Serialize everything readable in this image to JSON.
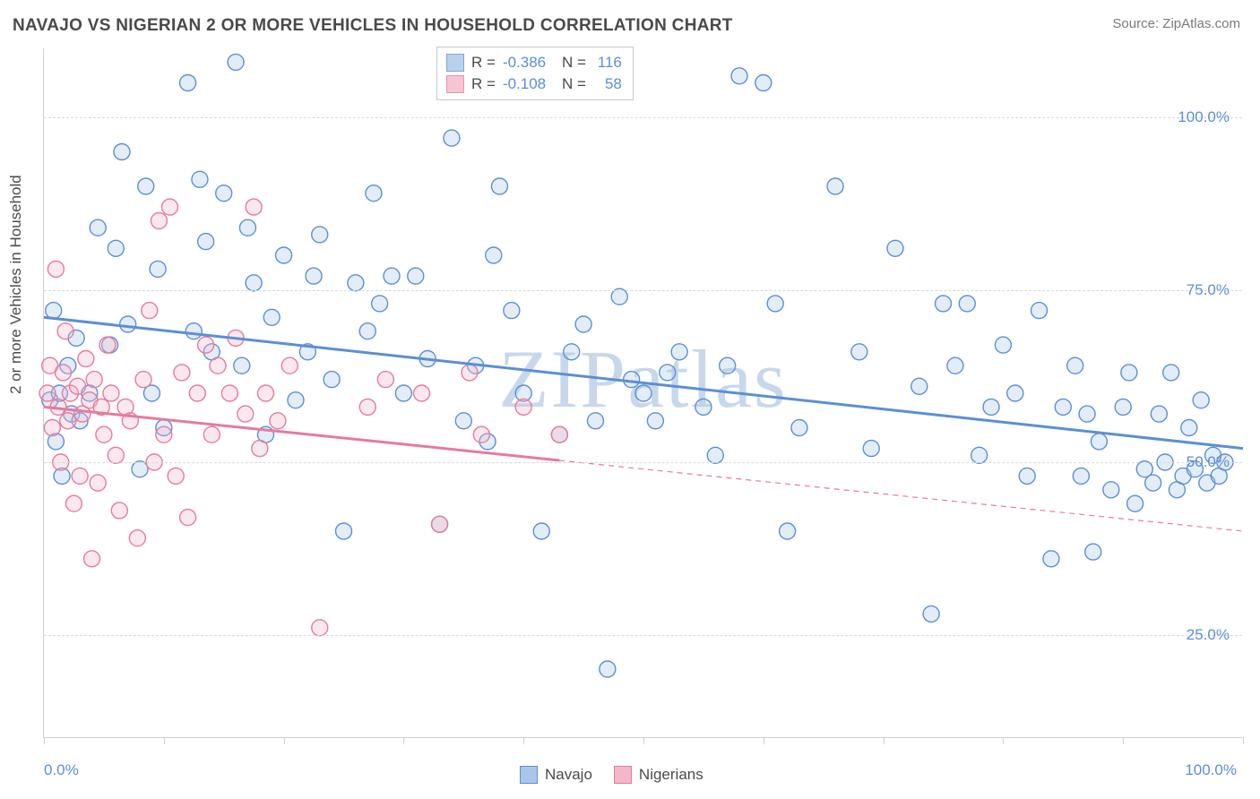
{
  "header": {
    "title": "NAVAJO VS NIGERIAN 2 OR MORE VEHICLES IN HOUSEHOLD CORRELATION CHART",
    "source_prefix": "Source: ",
    "source_name": "ZipAtlas.com"
  },
  "chart": {
    "type": "scatter",
    "ylabel": "2 or more Vehicles in Household",
    "watermark_text": "ZIPatlas",
    "watermark_color": "#c7d8ec",
    "background_color": "#ffffff",
    "grid_color": "#d8d8d8",
    "axis_color": "#cfcfcf",
    "ymin": 10,
    "ymax": 110,
    "xmin": 0,
    "xmax": 100,
    "yticks": [
      {
        "v": 25,
        "label": "25.0%"
      },
      {
        "v": 50,
        "label": "50.0%"
      },
      {
        "v": 75,
        "label": "75.0%"
      },
      {
        "v": 100,
        "label": "100.0%"
      }
    ],
    "ytick_color": "#5b8fd6",
    "xticks": [
      0,
      10,
      20,
      30,
      40,
      50,
      60,
      70,
      80,
      90,
      100
    ],
    "xtick_label_left": "0.0%",
    "xtick_label_right": "100.0%",
    "xtick_label_color": "#5b8fd6",
    "marker_radius": 9,
    "marker_stroke_width": 1.4,
    "marker_fill_opacity": 0.32,
    "regression_line_width": 3,
    "series": [
      {
        "name": "Navajo",
        "color": "#5b8fd6",
        "fill": "#a9c6ea",
        "stroke": "#5b8fd6",
        "R": "-0.386",
        "N": "116",
        "line": {
          "x1": 0,
          "y1": 71,
          "x2": 100,
          "y2": 52,
          "dash": "none"
        },
        "points": [
          [
            0.5,
            59
          ],
          [
            0.8,
            72
          ],
          [
            1.0,
            53
          ],
          [
            1.3,
            60
          ],
          [
            1.5,
            48
          ],
          [
            2.0,
            64
          ],
          [
            2.3,
            57
          ],
          [
            2.7,
            68
          ],
          [
            3.0,
            56
          ],
          [
            3.8,
            60
          ],
          [
            4.5,
            84
          ],
          [
            5.5,
            67
          ],
          [
            6.0,
            81
          ],
          [
            6.5,
            95
          ],
          [
            7.0,
            70
          ],
          [
            8.0,
            49
          ],
          [
            8.5,
            90
          ],
          [
            9.0,
            60
          ],
          [
            9.5,
            78
          ],
          [
            10.0,
            55
          ],
          [
            12.0,
            105
          ],
          [
            12.5,
            69
          ],
          [
            13.0,
            91
          ],
          [
            13.5,
            82
          ],
          [
            14.0,
            66
          ],
          [
            15.0,
            89
          ],
          [
            16.0,
            108
          ],
          [
            16.5,
            64
          ],
          [
            17.0,
            84
          ],
          [
            17.5,
            76
          ],
          [
            18.5,
            54
          ],
          [
            19.0,
            71
          ],
          [
            20.0,
            80
          ],
          [
            21.0,
            59
          ],
          [
            22.0,
            66
          ],
          [
            22.5,
            77
          ],
          [
            23.0,
            83
          ],
          [
            24.0,
            62
          ],
          [
            25.0,
            40
          ],
          [
            26.0,
            76
          ],
          [
            27.0,
            69
          ],
          [
            27.5,
            89
          ],
          [
            28.0,
            73
          ],
          [
            29.0,
            77
          ],
          [
            30.0,
            60
          ],
          [
            31.0,
            77
          ],
          [
            32.0,
            65
          ],
          [
            33.0,
            41
          ],
          [
            34.0,
            97
          ],
          [
            35.0,
            56
          ],
          [
            36.0,
            64
          ],
          [
            37.0,
            53
          ],
          [
            37.5,
            80
          ],
          [
            38.0,
            90
          ],
          [
            39.0,
            72
          ],
          [
            40.0,
            60
          ],
          [
            41.5,
            40
          ],
          [
            43.0,
            54
          ],
          [
            44.0,
            66
          ],
          [
            45.0,
            70
          ],
          [
            46.0,
            56
          ],
          [
            47.0,
            20
          ],
          [
            48.0,
            74
          ],
          [
            49.0,
            62
          ],
          [
            50.0,
            60
          ],
          [
            51.0,
            56
          ],
          [
            52.0,
            63
          ],
          [
            53.0,
            66
          ],
          [
            55.0,
            58
          ],
          [
            56.0,
            51
          ],
          [
            57.0,
            64
          ],
          [
            58.0,
            106
          ],
          [
            60.0,
            105
          ],
          [
            61.0,
            73
          ],
          [
            62.0,
            40
          ],
          [
            63.0,
            55
          ],
          [
            66.0,
            90
          ],
          [
            68.0,
            66
          ],
          [
            69.0,
            52
          ],
          [
            71.0,
            81
          ],
          [
            73.0,
            61
          ],
          [
            74.0,
            28
          ],
          [
            75.0,
            73
          ],
          [
            76.0,
            64
          ],
          [
            77.0,
            73
          ],
          [
            78.0,
            51
          ],
          [
            79.0,
            58
          ],
          [
            80.0,
            67
          ],
          [
            81.0,
            60
          ],
          [
            82.0,
            48
          ],
          [
            83.0,
            72
          ],
          [
            84.0,
            36
          ],
          [
            85.0,
            58
          ],
          [
            86.0,
            64
          ],
          [
            86.5,
            48
          ],
          [
            87.0,
            57
          ],
          [
            87.5,
            37
          ],
          [
            88.0,
            53
          ],
          [
            89.0,
            46
          ],
          [
            90.0,
            58
          ],
          [
            90.5,
            63
          ],
          [
            91.0,
            44
          ],
          [
            91.8,
            49
          ],
          [
            92.5,
            47
          ],
          [
            93.0,
            57
          ],
          [
            93.5,
            50
          ],
          [
            94.0,
            63
          ],
          [
            94.5,
            46
          ],
          [
            95.0,
            48
          ],
          [
            95.5,
            55
          ],
          [
            96.0,
            49
          ],
          [
            96.5,
            59
          ],
          [
            97.0,
            47
          ],
          [
            97.5,
            51
          ],
          [
            98.0,
            48
          ],
          [
            98.5,
            50
          ]
        ]
      },
      {
        "name": "Nigerians",
        "color": "#e77a9b",
        "fill": "#f4b6c9",
        "stroke": "#e77a9b",
        "R": "-0.108",
        "N": "58",
        "line": {
          "x1": 0,
          "y1": 58,
          "x2": 100,
          "y2": 40,
          "dash_solid_until": 43
        },
        "points": [
          [
            0.3,
            60
          ],
          [
            0.5,
            64
          ],
          [
            0.7,
            55
          ],
          [
            1.0,
            78
          ],
          [
            1.2,
            58
          ],
          [
            1.4,
            50
          ],
          [
            1.6,
            63
          ],
          [
            1.8,
            69
          ],
          [
            2.0,
            56
          ],
          [
            2.2,
            60
          ],
          [
            2.5,
            44
          ],
          [
            2.8,
            61
          ],
          [
            3.0,
            48
          ],
          [
            3.2,
            57
          ],
          [
            3.5,
            65
          ],
          [
            3.8,
            59
          ],
          [
            4.0,
            36
          ],
          [
            4.2,
            62
          ],
          [
            4.5,
            47
          ],
          [
            4.8,
            58
          ],
          [
            5.0,
            54
          ],
          [
            5.3,
            67
          ],
          [
            5.6,
            60
          ],
          [
            6.0,
            51
          ],
          [
            6.3,
            43
          ],
          [
            6.8,
            58
          ],
          [
            7.2,
            56
          ],
          [
            7.8,
            39
          ],
          [
            8.3,
            62
          ],
          [
            8.8,
            72
          ],
          [
            9.2,
            50
          ],
          [
            9.6,
            85
          ],
          [
            10.0,
            54
          ],
          [
            10.5,
            87
          ],
          [
            11.0,
            48
          ],
          [
            11.5,
            63
          ],
          [
            12.0,
            42
          ],
          [
            12.8,
            60
          ],
          [
            13.5,
            67
          ],
          [
            14.0,
            54
          ],
          [
            14.5,
            64
          ],
          [
            15.5,
            60
          ],
          [
            16.0,
            68
          ],
          [
            16.8,
            57
          ],
          [
            17.5,
            87
          ],
          [
            18.0,
            52
          ],
          [
            18.5,
            60
          ],
          [
            19.5,
            56
          ],
          [
            20.5,
            64
          ],
          [
            23.0,
            26
          ],
          [
            27.0,
            58
          ],
          [
            28.5,
            62
          ],
          [
            31.5,
            60
          ],
          [
            33.0,
            41
          ],
          [
            35.5,
            63
          ],
          [
            36.5,
            54
          ],
          [
            40.0,
            58
          ],
          [
            43.0,
            54
          ]
        ]
      }
    ],
    "legend_top": {
      "font_size": 17,
      "label_R": "R =",
      "label_N": "N ="
    },
    "legend_bottom": {
      "items": [
        {
          "label": "Navajo",
          "color": "#a9c6ea",
          "stroke": "#5b8fd6"
        },
        {
          "label": "Nigerians",
          "color": "#f4b6c9",
          "stroke": "#e77a9b"
        }
      ]
    }
  }
}
